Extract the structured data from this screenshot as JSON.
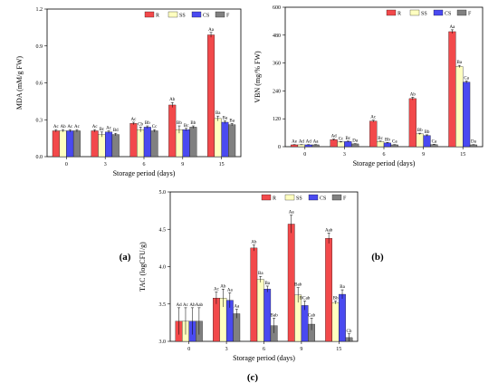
{
  "figure": {
    "panel_labels": [
      "(a)",
      "(b)",
      "(c)"
    ]
  },
  "chart_data": [
    {
      "type": "bar",
      "title": "",
      "xlabel": "Storage period (days)",
      "ylabel": "MDA (mM/g FW)",
      "categories": [
        "0",
        "3",
        "6",
        "9",
        "15"
      ],
      "ylim": [
        0,
        1.2
      ],
      "yticks": [
        "0.0",
        "0.3",
        "0.6",
        "0.9",
        "1.2"
      ],
      "legend_position": "top-right",
      "series": [
        {
          "name": "R",
          "color": "#f2494b",
          "values": [
            0.21,
            0.21,
            0.27,
            0.42,
            0.99
          ],
          "errors": [
            0.01,
            0.01,
            0.01,
            0.02,
            0.02
          ],
          "labels": [
            "Ac",
            "Ac",
            "Ac",
            "Ab",
            "Aa"
          ]
        },
        {
          "name": "SS",
          "color": "#ffffc0",
          "values": [
            0.21,
            0.18,
            0.22,
            0.22,
            0.31
          ],
          "errors": [
            0.01,
            0.02,
            0.02,
            0.03,
            0.02
          ],
          "labels": [
            "Ab",
            "Bc",
            "Cb",
            "Bb",
            "Ba"
          ]
        },
        {
          "name": "CS",
          "color": "#4a4af0",
          "values": [
            0.21,
            0.2,
            0.24,
            0.22,
            0.28
          ],
          "errors": [
            0.01,
            0.01,
            0.01,
            0.01,
            0.01
          ],
          "labels": [
            "Ac",
            "Ac",
            "Bb",
            "Bc",
            "Ba"
          ]
        },
        {
          "name": "F",
          "color": "#808080",
          "values": [
            0.21,
            0.18,
            0.21,
            0.24,
            0.26
          ],
          "errors": [
            0.01,
            0.01,
            0.01,
            0.01,
            0.01
          ],
          "labels": [
            "Ac",
            "Bd",
            "Cc",
            "Bb",
            "Ba"
          ]
        }
      ]
    },
    {
      "type": "bar",
      "title": "",
      "xlabel": "Storage period (days)",
      "ylabel": "VBN (mg/% FW)",
      "categories": [
        "0",
        "3",
        "6",
        "9",
        "15"
      ],
      "ylim": [
        0,
        600
      ],
      "yticks": [
        "0",
        "120",
        "240",
        "360",
        "480",
        "600"
      ],
      "legend_position": "top-right",
      "series": [
        {
          "name": "R",
          "color": "#f2494b",
          "values": [
            8,
            30,
            110,
            207,
            495
          ],
          "errors": [
            1,
            3,
            4,
            6,
            8
          ],
          "labels": [
            "Ae",
            "Ad",
            "Ac",
            "Ab",
            "Aa"
          ]
        },
        {
          "name": "SS",
          "color": "#ffffc0",
          "values": [
            8,
            20,
            22,
            55,
            345
          ],
          "errors": [
            1,
            2,
            2,
            3,
            5
          ],
          "labels": [
            "Ad",
            "Cc",
            "Bc",
            "Bb",
            "Ba"
          ]
        },
        {
          "name": "CS",
          "color": "#4a4af0",
          "values": [
            8,
            22,
            16,
            48,
            278
          ],
          "errors": [
            1,
            2,
            2,
            3,
            5
          ],
          "labels": [
            "Ad",
            "Bc",
            "Bb",
            "Bb",
            "Ca"
          ]
        },
        {
          "name": "F",
          "color": "#808080",
          "values": [
            8,
            12,
            8,
            9,
            8
          ],
          "errors": [
            1,
            1,
            1,
            1,
            1
          ],
          "labels": [
            "Aa",
            "Da",
            "Ca",
            "Ca",
            "Da"
          ]
        }
      ]
    },
    {
      "type": "bar",
      "title": "",
      "xlabel": "Storage period (days)",
      "ylabel": "TAC (logCFU/g)",
      "categories": [
        "0",
        "3",
        "6",
        "9",
        "15"
      ],
      "ylim": [
        3.0,
        5.0
      ],
      "yticks": [
        "3.0",
        "3.5",
        "4.0",
        "4.5",
        "5.0"
      ],
      "legend_position": "top-right",
      "series": [
        {
          "name": "R",
          "color": "#f2494b",
          "values": [
            3.27,
            3.58,
            4.25,
            4.57,
            4.38
          ],
          "errors": [
            0.18,
            0.08,
            0.04,
            0.12,
            0.07
          ],
          "labels": [
            "Ad",
            "Ac",
            "Ab",
            "Aa",
            "Aab"
          ]
        },
        {
          "name": "SS",
          "color": "#ffffc0",
          "values": [
            3.27,
            3.58,
            3.83,
            3.62,
            3.52
          ],
          "errors": [
            0.18,
            0.12,
            0.04,
            0.1,
            0.02
          ],
          "labels": [
            "Ac",
            "Ab",
            "Ba",
            "Bab",
            "Bb"
          ]
        },
        {
          "name": "CS",
          "color": "#4a4af0",
          "values": [
            3.27,
            3.55,
            3.7,
            3.48,
            3.63
          ],
          "errors": [
            0.18,
            0.1,
            0.04,
            0.06,
            0.06
          ],
          "labels": [
            "Ab",
            "Aa",
            "Ba",
            "BCab",
            "Ba"
          ]
        },
        {
          "name": "F",
          "color": "#808080",
          "values": [
            3.27,
            3.37,
            3.21,
            3.23,
            3.05
          ],
          "errors": [
            0.18,
            0.06,
            0.1,
            0.08,
            0.05
          ],
          "labels": [
            "Aab",
            "Aa",
            "Bab",
            "Cab",
            "Cb"
          ]
        }
      ]
    }
  ]
}
